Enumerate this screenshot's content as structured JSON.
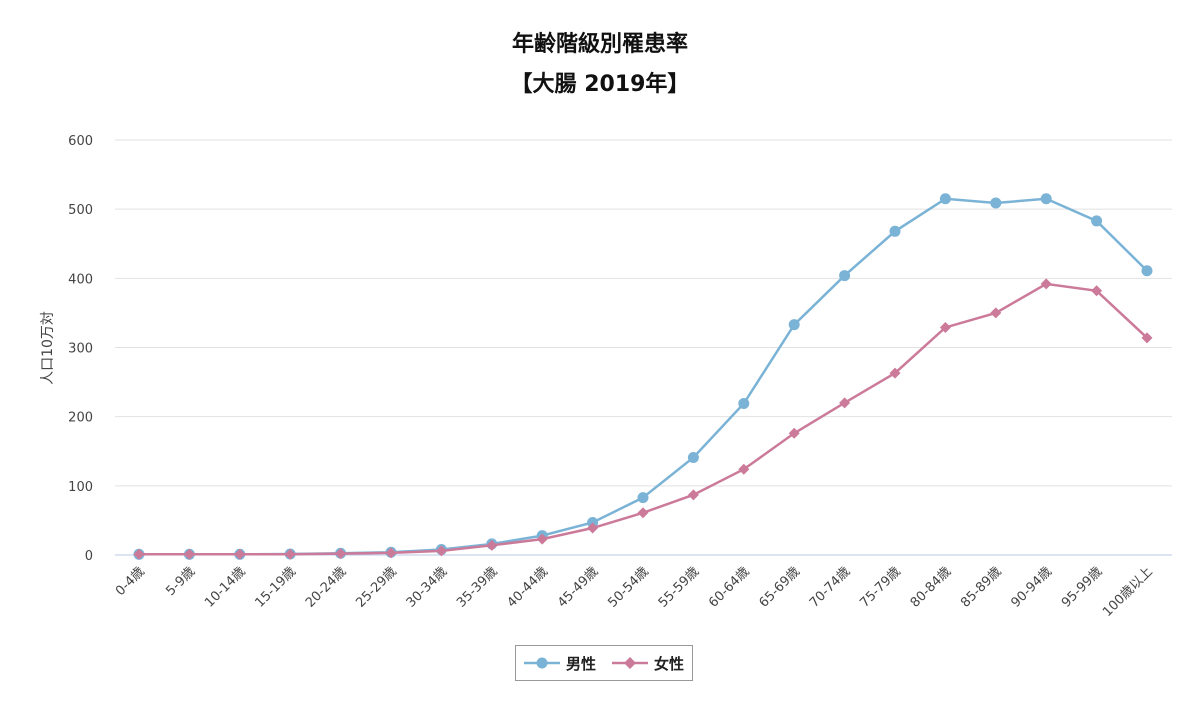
{
  "chart_data": {
    "type": "line",
    "title": "年齢階級別罹患率",
    "subtitle": "【大腸 2019年】",
    "ylabel": "人口10万対",
    "xlabel": "",
    "ylim": [
      0,
      600
    ],
    "yticks": [
      0,
      100,
      200,
      300,
      400,
      500,
      600
    ],
    "grid": true,
    "legend_position": "bottom",
    "categories": [
      "0-4歳",
      "5-9歳",
      "10-14歳",
      "15-19歳",
      "20-24歳",
      "25-29歳",
      "30-34歳",
      "35-39歳",
      "40-44歳",
      "45-49歳",
      "50-54歳",
      "55-59歳",
      "60-64歳",
      "65-69歳",
      "70-74歳",
      "75-79歳",
      "80-84歳",
      "85-89歳",
      "90-94歳",
      "95-99歳",
      "100歳以上"
    ],
    "series": [
      {
        "name": "男性",
        "color": "#7ab3d6",
        "marker": "circle",
        "values": [
          1,
          1,
          1,
          1.5,
          2.5,
          4,
          8,
          16,
          28,
          47,
          83,
          141,
          219,
          333,
          404,
          468,
          515,
          509,
          515,
          483,
          411
        ]
      },
      {
        "name": "女性",
        "color": "#cc7a99",
        "marker": "diamond",
        "values": [
          1,
          1,
          1,
          1,
          2,
          3,
          6,
          14,
          23,
          39,
          61,
          87,
          124,
          176,
          220,
          263,
          329,
          350,
          392,
          382,
          314
        ]
      }
    ]
  }
}
